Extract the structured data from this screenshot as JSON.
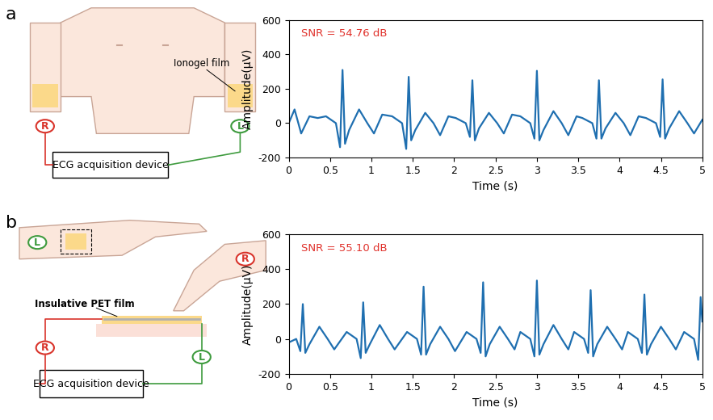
{
  "panels": [
    "a",
    "b"
  ],
  "diagrams": [
    {
      "film": "Ionogel film",
      "right": "R",
      "left": "L",
      "device": "ECG acquisition device"
    },
    {
      "film": "Insulative PET film",
      "right": "R",
      "left": "L",
      "device": "ECG acquisition device"
    }
  ],
  "chart_data": [
    {
      "type": "line",
      "color": "#1f6fb0",
      "annotations": [
        "SNR = 54.76 dB"
      ],
      "x_label": "Time (s)",
      "y_label": "Amplitude(μV)",
      "x": [
        0,
        0.07,
        0.15,
        0.25,
        0.35,
        0.45,
        0.57,
        0.62,
        0.65,
        0.68,
        0.73,
        0.85,
        0.95,
        1.03,
        1.13,
        1.25,
        1.37,
        1.42,
        1.45,
        1.48,
        1.53,
        1.65,
        1.75,
        1.83,
        1.93,
        2.02,
        2.14,
        2.19,
        2.22,
        2.25,
        2.3,
        2.42,
        2.52,
        2.6,
        2.7,
        2.8,
        2.92,
        2.97,
        3.0,
        3.03,
        3.08,
        3.2,
        3.3,
        3.38,
        3.48,
        3.55,
        3.67,
        3.72,
        3.75,
        3.78,
        3.83,
        3.95,
        4.05,
        4.13,
        4.23,
        4.32,
        4.44,
        4.49,
        4.52,
        4.55,
        4.6,
        4.72,
        4.82,
        4.9,
        5.0
      ],
      "values": [
        0,
        80,
        -60,
        40,
        30,
        40,
        0,
        -140,
        310,
        -120,
        -40,
        80,
        0,
        -60,
        50,
        40,
        0,
        -150,
        270,
        -100,
        -40,
        60,
        0,
        -70,
        40,
        30,
        0,
        -80,
        250,
        -100,
        -30,
        60,
        0,
        -60,
        50,
        40,
        0,
        -90,
        305,
        -100,
        -40,
        70,
        0,
        -70,
        40,
        30,
        0,
        -90,
        250,
        -90,
        -30,
        60,
        0,
        -70,
        40,
        30,
        0,
        -80,
        255,
        -90,
        -30,
        70,
        0,
        -60,
        20
      ],
      "xlim": [
        0,
        5
      ],
      "xticks": [
        0,
        0.5,
        1,
        1.5,
        2,
        2.5,
        3,
        3.5,
        4,
        4.5,
        5
      ],
      "ylim": [
        -200,
        600
      ],
      "yticks": [
        -200,
        0,
        200,
        400,
        600
      ]
    },
    {
      "type": "line",
      "color": "#1f6fb0",
      "annotations": [
        "SNR = 55.10 dB"
      ],
      "x_label": "Time (s)",
      "y_label": "Amplitude(μV)",
      "x": [
        0,
        0.09,
        0.14,
        0.17,
        0.2,
        0.25,
        0.37,
        0.47,
        0.55,
        0.7,
        0.82,
        0.87,
        0.9,
        0.93,
        0.98,
        1.1,
        1.2,
        1.28,
        1.43,
        1.55,
        1.6,
        1.63,
        1.66,
        1.71,
        1.83,
        1.93,
        2.01,
        2.15,
        2.27,
        2.32,
        2.35,
        2.38,
        2.43,
        2.55,
        2.65,
        2.73,
        2.8,
        2.92,
        2.97,
        3.0,
        3.03,
        3.08,
        3.2,
        3.3,
        3.38,
        3.45,
        3.57,
        3.62,
        3.65,
        3.68,
        3.73,
        3.85,
        3.95,
        4.03,
        4.1,
        4.22,
        4.27,
        4.3,
        4.33,
        4.38,
        4.5,
        4.6,
        4.68,
        4.78,
        4.9,
        4.95,
        4.98,
        5.0
      ],
      "values": [
        -20,
        0,
        -70,
        200,
        -80,
        -30,
        70,
        0,
        -60,
        40,
        0,
        -110,
        210,
        -80,
        -30,
        80,
        0,
        -60,
        40,
        0,
        -90,
        300,
        -90,
        -30,
        70,
        0,
        -70,
        40,
        0,
        -80,
        325,
        -100,
        -30,
        70,
        0,
        -60,
        40,
        0,
        -100,
        335,
        -90,
        -30,
        80,
        0,
        -60,
        40,
        0,
        -80,
        280,
        -100,
        -30,
        70,
        0,
        -60,
        40,
        0,
        -80,
        255,
        -90,
        -30,
        70,
        0,
        -60,
        40,
        0,
        -120,
        240,
        100
      ],
      "xlim": [
        0,
        5
      ],
      "xticks": [
        0,
        0.5,
        1,
        1.5,
        2,
        2.5,
        3,
        3.5,
        4,
        4.5,
        5
      ],
      "ylim": [
        -200,
        600
      ],
      "yticks": [
        -200,
        0,
        200,
        400,
        600
      ]
    }
  ]
}
